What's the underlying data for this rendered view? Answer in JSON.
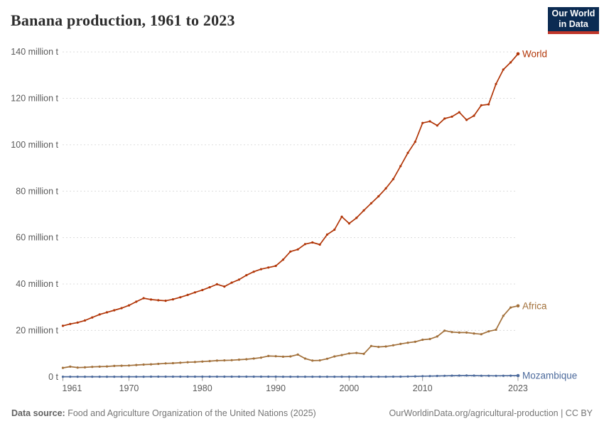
{
  "header": {
    "title": "Banana production, 1961 to 2023",
    "logo_line1": "Our World",
    "logo_line2": "in Data"
  },
  "footer": {
    "source_label": "Data source:",
    "source_text": " Food and Agriculture Organization of the United Nations (2025)",
    "link_text": "OurWorldinData.org/agricultural-production | CC BY"
  },
  "colors": {
    "world": "#b13507",
    "africa": "#a2703a",
    "mozambique": "#4c6a9c",
    "grid": "#dcdcdc",
    "axis_text": "#5b5b5b",
    "tick_mark": "#999999",
    "logo_bg": "#0b2b52",
    "logo_bar": "#c0362a",
    "title_text": "#2d2d2d"
  },
  "chart_data": {
    "type": "line",
    "title": "Banana production, 1961 to 2023",
    "xlabel": "",
    "ylabel": "million tonnes",
    "ylim": [
      0,
      145
    ],
    "grid": "horizontal-dashed",
    "legend": "end-of-line labels",
    "x_ticks": [
      1961,
      1970,
      1980,
      1990,
      2000,
      2010,
      2023
    ],
    "y_ticks": [
      {
        "value": 0,
        "label": "0 t"
      },
      {
        "value": 20,
        "label": "20 million t"
      },
      {
        "value": 40,
        "label": "40 million t"
      },
      {
        "value": 60,
        "label": "60 million t"
      },
      {
        "value": 80,
        "label": "80 million t"
      },
      {
        "value": 100,
        "label": "100 million t"
      },
      {
        "value": 120,
        "label": "120 million t"
      },
      {
        "value": 140,
        "label": "140 million t"
      }
    ],
    "x": [
      1961,
      1962,
      1963,
      1964,
      1965,
      1966,
      1967,
      1968,
      1969,
      1970,
      1971,
      1972,
      1973,
      1974,
      1975,
      1976,
      1977,
      1978,
      1979,
      1980,
      1981,
      1982,
      1983,
      1984,
      1985,
      1986,
      1987,
      1988,
      1989,
      1990,
      1991,
      1992,
      1993,
      1994,
      1995,
      1996,
      1997,
      1998,
      1999,
      2000,
      2001,
      2002,
      2003,
      2004,
      2005,
      2006,
      2007,
      2008,
      2009,
      2010,
      2011,
      2012,
      2013,
      2014,
      2015,
      2016,
      2017,
      2018,
      2019,
      2020,
      2021,
      2022,
      2023
    ],
    "series": [
      {
        "name": "World",
        "color": "#b13507",
        "values": [
          22.0,
          22.8,
          23.4,
          24.3,
          25.6,
          26.9,
          27.8,
          28.7,
          29.6,
          30.8,
          32.4,
          33.9,
          33.3,
          33.0,
          32.8,
          33.4,
          34.3,
          35.3,
          36.4,
          37.4,
          38.6,
          39.9,
          38.9,
          40.6,
          41.9,
          43.8,
          45.3,
          46.4,
          47.1,
          47.8,
          50.5,
          54.0,
          54.9,
          57.2,
          57.9,
          57.0,
          61.3,
          63.4,
          69.0,
          66.1,
          68.5,
          71.7,
          74.8,
          77.8,
          81.2,
          85.2,
          90.8,
          96.5,
          101.3,
          109.4,
          110.1,
          108.3,
          111.3,
          112.1,
          114.0,
          110.7,
          112.5,
          117.0,
          117.4,
          126.2,
          132.4,
          135.5,
          139.2
        ]
      },
      {
        "name": "Africa",
        "color": "#a2703a",
        "values": [
          3.9,
          4.4,
          4.0,
          4.1,
          4.3,
          4.4,
          4.5,
          4.7,
          4.8,
          4.9,
          5.1,
          5.3,
          5.4,
          5.6,
          5.8,
          5.9,
          6.1,
          6.3,
          6.4,
          6.6,
          6.8,
          7.0,
          7.1,
          7.2,
          7.4,
          7.6,
          7.9,
          8.3,
          9.0,
          8.9,
          8.7,
          8.8,
          9.6,
          7.9,
          7.0,
          7.1,
          7.8,
          8.8,
          9.4,
          10.1,
          10.3,
          9.9,
          13.3,
          12.9,
          13.1,
          13.6,
          14.2,
          14.7,
          15.1,
          16.0,
          16.3,
          17.4,
          19.9,
          19.3,
          19.1,
          19.1,
          18.7,
          18.4,
          19.6,
          20.3,
          26.3,
          29.9,
          30.6
        ]
      },
      {
        "name": "Mozambique",
        "color": "#4c6a9c",
        "values": [
          0.05,
          0.05,
          0.05,
          0.06,
          0.06,
          0.06,
          0.06,
          0.06,
          0.07,
          0.07,
          0.07,
          0.07,
          0.08,
          0.08,
          0.08,
          0.08,
          0.08,
          0.08,
          0.08,
          0.08,
          0.08,
          0.08,
          0.08,
          0.08,
          0.08,
          0.08,
          0.08,
          0.08,
          0.08,
          0.08,
          0.07,
          0.07,
          0.06,
          0.06,
          0.06,
          0.06,
          0.06,
          0.06,
          0.06,
          0.06,
          0.06,
          0.06,
          0.07,
          0.07,
          0.07,
          0.08,
          0.09,
          0.16,
          0.22,
          0.31,
          0.35,
          0.4,
          0.45,
          0.52,
          0.55,
          0.58,
          0.55,
          0.5,
          0.48,
          0.47,
          0.5,
          0.52,
          0.54
        ]
      }
    ]
  }
}
